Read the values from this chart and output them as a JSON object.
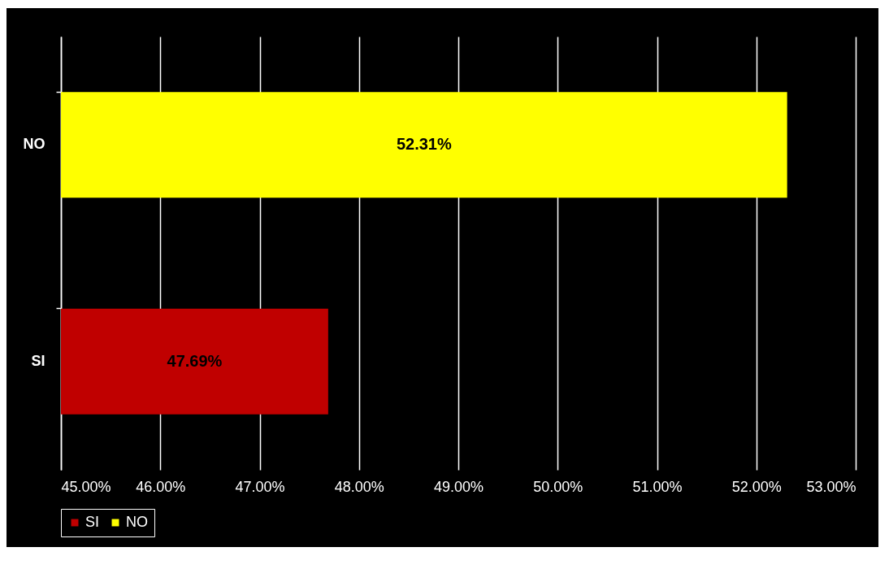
{
  "chart_data": {
    "type": "bar",
    "orientation": "horizontal",
    "categories": [
      "NO",
      "SI"
    ],
    "series": [
      {
        "name": "SI",
        "color": "#c00000",
        "values": [
          null,
          47.69
        ],
        "value_labels": [
          null,
          "47.69%"
        ]
      },
      {
        "name": "NO",
        "color": "#ffff00",
        "values": [
          52.31,
          null
        ],
        "value_labels": [
          "52.31%",
          null
        ]
      }
    ],
    "xlim": [
      45,
      53
    ],
    "xticks": [
      {
        "value": 45,
        "label": "45.00%"
      },
      {
        "value": 46,
        "label": "46.00%"
      },
      {
        "value": 47,
        "label": "47.00%"
      },
      {
        "value": 48,
        "label": "48.00%"
      },
      {
        "value": 49,
        "label": "49.00%"
      },
      {
        "value": 50,
        "label": "50.00%"
      },
      {
        "value": 51,
        "label": "51.00%"
      },
      {
        "value": 52,
        "label": "52.00%"
      },
      {
        "value": 53,
        "label": "53.00%"
      }
    ],
    "grid": "x",
    "legend": "bottom"
  }
}
